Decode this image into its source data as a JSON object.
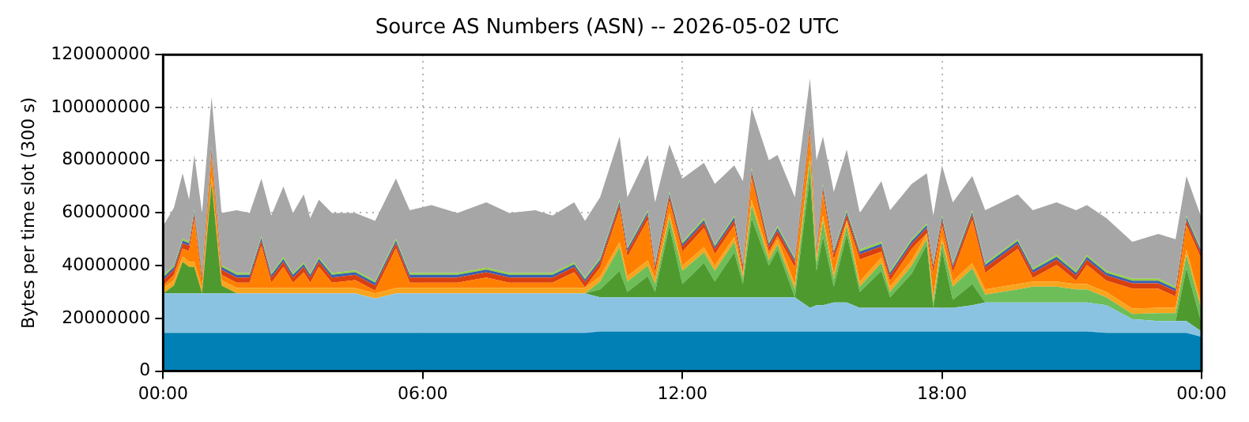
{
  "chart_data": {
    "type": "area",
    "stacked": true,
    "title": "Source AS Numbers (ASN) -- 2026-05-02 UTC",
    "ylabel": "Bytes per time slot (300 s)",
    "x": [
      0,
      0.25,
      0.45,
      0.6,
      0.72,
      0.9,
      1.12,
      1.35,
      1.7,
      2.0,
      2.27,
      2.5,
      2.78,
      3.0,
      3.25,
      3.4,
      3.6,
      3.9,
      4.44,
      4.9,
      5.38,
      5.7,
      6.2,
      6.8,
      7.47,
      8.0,
      8.6,
      9.0,
      9.5,
      9.75,
      10.1,
      10.55,
      10.73,
      11.2,
      11.37,
      11.7,
      12.0,
      12.5,
      12.75,
      13.2,
      13.4,
      13.6,
      14.0,
      14.2,
      14.6,
      14.95,
      15.1,
      15.25,
      15.5,
      15.8,
      16.1,
      16.6,
      16.8,
      17.3,
      17.65,
      17.8,
      18.0,
      18.25,
      18.7,
      19.0,
      19.75,
      20.1,
      20.65,
      21.1,
      21.35,
      21.8,
      22.4,
      23.0,
      23.4,
      23.65,
      24
    ],
    "xlim": [
      0,
      24
    ],
    "xticks": [
      {
        "value": 0,
        "label": "00:00"
      },
      {
        "value": 6,
        "label": "06:00"
      },
      {
        "value": 12,
        "label": "12:00"
      },
      {
        "value": 18,
        "label": "18:00"
      },
      {
        "value": 24,
        "label": "00:00"
      }
    ],
    "ylim": [
      0,
      120000000
    ],
    "yticks": [
      0,
      20000000,
      40000000,
      60000000,
      80000000,
      100000000,
      120000000
    ],
    "grid": true,
    "series": [
      {
        "color": "#0080b4",
        "values": [
          14500000.0,
          14500000.0,
          14500000.0,
          14500000.0,
          14500000.0,
          14500000.0,
          14500000.0,
          14500000.0,
          14500000.0,
          14500000.0,
          14500000.0,
          14500000.0,
          14500000.0,
          14500000.0,
          14500000.0,
          14500000.0,
          14500000.0,
          14500000.0,
          14500000.0,
          14500000.0,
          14500000.0,
          14500000.0,
          14500000.0,
          14500000.0,
          14500000.0,
          14500000.0,
          14500000.0,
          14500000.0,
          14500000.0,
          14500000.0,
          15000000.0,
          15000000.0,
          15000000.0,
          15000000.0,
          15000000.0,
          15000000.0,
          15000000.0,
          15000000.0,
          15000000.0,
          15000000.0,
          15000000.0,
          15000000.0,
          15000000.0,
          15000000.0,
          15000000.0,
          15000000.0,
          15000000.0,
          15000000.0,
          15000000.0,
          15000000.0,
          15000000.0,
          15000000.0,
          15000000.0,
          15000000.0,
          15000000.0,
          15000000.0,
          15000000.0,
          15000000.0,
          15000000.0,
          15000000.0,
          15000000.0,
          15000000.0,
          15000000.0,
          15000000.0,
          15000000.0,
          14500000.0,
          14500000.0,
          14500000.0,
          14500000.0,
          14500000.0,
          13000000.0
        ]
      },
      {
        "color": "#8ac3e2",
        "values": [
          15000000.0,
          15000000.0,
          15000000.0,
          15000000.0,
          15000000.0,
          15000000.0,
          15000000.0,
          15000000.0,
          15000000.0,
          15000000.0,
          15000000.0,
          15000000.0,
          15000000.0,
          15000000.0,
          15000000.0,
          15000000.0,
          15000000.0,
          15000000.0,
          15000000.0,
          13000000.0,
          15000000.0,
          15000000.0,
          15000000.0,
          15000000.0,
          15000000.0,
          15000000.0,
          15000000.0,
          15000000.0,
          15000000.0,
          15000000.0,
          13000000.0,
          13000000.0,
          13000000.0,
          13000000.0,
          13000000.0,
          13000000.0,
          13000000.0,
          13000000.0,
          13000000.0,
          13000000.0,
          13000000.0,
          13000000.0,
          13000000.0,
          13000000.0,
          13000000.0,
          9000000.0,
          10000000.0,
          10000000.0,
          11000000.0,
          11000000.0,
          9000000.0,
          9000000.0,
          9000000.0,
          9000000.0,
          9000000.0,
          9000000.0,
          9000000.0,
          9000000.0,
          10000000.0,
          11000000.0,
          11000000.0,
          11000000.0,
          11000000.0,
          11000000.0,
          11000000.0,
          10500000.0,
          5200000.0,
          4500000.0,
          4500000.0,
          4500000.0,
          2000000.0
        ]
      },
      {
        "color": "#4f9a2f",
        "values": [
          0,
          3000000.0,
          12000000.0,
          10000000.0,
          10000000.0,
          0,
          42000000.0,
          3000000.0,
          0,
          0,
          0,
          0,
          0,
          0,
          0,
          0,
          0,
          0,
          0,
          0,
          0,
          0,
          0,
          0,
          0,
          0,
          0,
          0,
          0,
          0,
          3000000.0,
          10000000.0,
          2000000.0,
          8000000.0,
          2000000.0,
          27000000.0,
          5000000.0,
          13000000.0,
          6000000.0,
          17000000.0,
          5000000.0,
          30000000.0,
          12000000.0,
          18000000.0,
          0,
          50000000.0,
          13000000.0,
          26000000.0,
          6000000.0,
          26000000.0,
          6000000.0,
          14000000.0,
          4000000.0,
          13000000.0,
          24000000.0,
          0,
          22000000.0,
          3000000.0,
          8000000.0,
          0,
          0,
          0,
          0,
          0,
          0,
          0,
          0,
          0,
          0,
          20000000.0,
          3000000.0
        ]
      },
      {
        "color": "#6dbd58",
        "values": [
          0,
          0,
          0,
          0,
          0,
          0,
          0,
          0,
          0,
          0,
          0,
          0,
          0,
          0,
          0,
          0,
          0,
          0,
          0,
          0,
          0,
          0,
          0,
          0,
          0,
          0,
          0,
          0,
          0,
          0,
          3000000.0,
          9000000.0,
          4000000.0,
          4000000.0,
          3000000.0,
          3000000.0,
          5000000.0,
          4000000.0,
          4000000.0,
          4000000.0,
          2000000.0,
          5000000.0,
          2000000.0,
          2000000.0,
          3000000.0,
          6000000.0,
          3000000.0,
          6000000.0,
          3000000.0,
          3000000.0,
          2000000.0,
          3000000.0,
          2000000.0,
          3000000.0,
          2000000.0,
          2000000.0,
          3000000.0,
          5000000.0,
          6000000.0,
          3000000.0,
          5000000.0,
          6000000.0,
          6000000.0,
          5000000.0,
          5000000.0,
          3000000.0,
          2000000.0,
          3000000.0,
          3000000.0,
          5000000.0,
          5000000.0
        ]
      },
      {
        "color": "#f7a51e",
        "values": [
          2000000.0,
          2000000.0,
          2000000.0,
          2000000.0,
          2000000.0,
          2000000.0,
          2000000.0,
          2000000.0,
          2000000.0,
          2000000.0,
          2000000.0,
          2000000.0,
          2000000.0,
          2000000.0,
          2000000.0,
          2000000.0,
          2000000.0,
          2000000.0,
          2000000.0,
          2000000.0,
          2000000.0,
          2000000.0,
          2000000.0,
          2000000.0,
          2000000.0,
          2000000.0,
          2000000.0,
          2000000.0,
          2000000.0,
          2000000.0,
          2000000.0,
          2000000.0,
          2000000.0,
          2000000.0,
          2000000.0,
          2000000.0,
          2000000.0,
          2000000.0,
          2000000.0,
          2000000.0,
          2000000.0,
          2000000.0,
          2000000.0,
          2000000.0,
          2000000.0,
          2000000.0,
          2000000.0,
          2000000.0,
          2000000.0,
          2000000.0,
          2000000.0,
          2000000.0,
          2000000.0,
          2000000.0,
          2000000.0,
          2000000.0,
          2000000.0,
          2000000.0,
          2000000.0,
          2000000.0,
          2000000.0,
          2000000.0,
          2000000.0,
          2000000.0,
          2000000.0,
          2000000.0,
          2000000.0,
          2000000.0,
          2000000.0,
          2000000.0,
          2000000.0
        ]
      },
      {
        "color": "#ff7f00",
        "values": [
          1000000.0,
          2000000.0,
          3000000.0,
          4000000.0,
          16000000.0,
          2000000.0,
          8000000.0,
          2000000.0,
          2000000.0,
          2000000.0,
          16000000.0,
          2000000.0,
          8000000.0,
          2000000.0,
          6000000.0,
          2000000.0,
          8000000.0,
          2000000.0,
          3000000.0,
          1000000.0,
          15000000.0,
          2000000.0,
          2000000.0,
          2000000.0,
          4000000.0,
          2000000.0,
          2000000.0,
          2000000.0,
          6000000.0,
          300000.0,
          3300000.0,
          12300000.0,
          7300000.0,
          15300000.0,
          2300000.0,
          4300000.0,
          5300000.0,
          7300000.0,
          4300000.0,
          4300000.0,
          300000.0,
          8300000.0,
          1300000.0,
          1300000.0,
          6300000.0,
          8300000.0,
          300000.0,
          8300000.0,
          5300000.0,
          300000.0,
          8300000.0,
          2300000.0,
          2300000.0,
          4300000.0,
          300000.0,
          9300000.0,
          4300000.0,
          3300000.0,
          16300000.0,
          6300000.0,
          13300000.0,
          1300000.0,
          6300000.0,
          1300000.0,
          7300000.0,
          4300000.0,
          7600000.0,
          7300000.0,
          4300000.0,
          9300000.0,
          17300000.0
        ]
      },
      {
        "color": "#d94010",
        "values": [
          2000000.0,
          2000000.0,
          2000000.0,
          2000000.0,
          2000000.0,
          2000000.0,
          2000000.0,
          2000000.0,
          2000000.0,
          2000000.0,
          2000000.0,
          2000000.0,
          2000000.0,
          2000000.0,
          2000000.0,
          2000000.0,
          2000000.0,
          2000000.0,
          2000000.0,
          2000000.0,
          2000000.0,
          2000000.0,
          2000000.0,
          2000000.0,
          2000000.0,
          2000000.0,
          2000000.0,
          2000000.0,
          2000000.0,
          2000000.0,
          2000000.0,
          2000000.0,
          2000000.0,
          2000000.0,
          2000000.0,
          2000000.0,
          2000000.0,
          2000000.0,
          2000000.0,
          2000000.0,
          2000000.0,
          2000000.0,
          2000000.0,
          2000000.0,
          2000000.0,
          2000000.0,
          2000000.0,
          2000000.0,
          2000000.0,
          2000000.0,
          2000000.0,
          2000000.0,
          2000000.0,
          2000000.0,
          2000000.0,
          2000000.0,
          2000000.0,
          2000000.0,
          2000000.0,
          2000000.0,
          2000000.0,
          2000000.0,
          2000000.0,
          2000000.0,
          2000000.0,
          2000000.0,
          2000000.0,
          2000000.0,
          2000000.0,
          2000000.0,
          2000000.0
        ]
      },
      {
        "color": "#3a5fb0",
        "values": [
          1000000.0,
          1000000.0,
          1000000.0,
          1000000.0,
          1000000.0,
          1000000.0,
          1000000.0,
          1000000.0,
          1000000.0,
          1000000.0,
          1000000.0,
          1000000.0,
          1000000.0,
          1000000.0,
          1000000.0,
          1000000.0,
          1000000.0,
          1000000.0,
          1000000.0,
          1000000.0,
          1000000.0,
          1000000.0,
          1000000.0,
          1000000.0,
          1000000.0,
          1000000.0,
          1000000.0,
          1000000.0,
          1000000.0,
          1000000.0,
          1000000.0,
          1000000.0,
          1000000.0,
          1000000.0,
          1000000.0,
          1000000.0,
          1000000.0,
          1000000.0,
          1000000.0,
          1000000.0,
          1000000.0,
          1000000.0,
          1000000.0,
          1000000.0,
          1000000.0,
          1000000.0,
          1000000.0,
          1000000.0,
          1000000.0,
          1000000.0,
          1000000.0,
          1000000.0,
          1000000.0,
          1000000.0,
          1000000.0,
          1000000.0,
          1000000.0,
          1000000.0,
          1000000.0,
          1000000.0,
          1000000.0,
          1000000.0,
          1000000.0,
          1000000.0,
          1000000.0,
          1000000.0,
          1000000.0,
          1000000.0,
          1000000.0,
          1000000.0,
          1000000.0
        ]
      },
      {
        "color": "#8fd140",
        "values": [
          700000.0,
          700000.0,
          700000.0,
          700000.0,
          700000.0,
          700000.0,
          700000.0,
          700000.0,
          700000.0,
          700000.0,
          700000.0,
          700000.0,
          700000.0,
          700000.0,
          700000.0,
          700000.0,
          700000.0,
          700000.0,
          700000.0,
          700000.0,
          700000.0,
          700000.0,
          700000.0,
          700000.0,
          700000.0,
          700000.0,
          700000.0,
          700000.0,
          700000.0,
          700000.0,
          700000.0,
          700000.0,
          700000.0,
          700000.0,
          700000.0,
          700000.0,
          700000.0,
          700000.0,
          700000.0,
          700000.0,
          700000.0,
          700000.0,
          700000.0,
          700000.0,
          700000.0,
          700000.0,
          700000.0,
          700000.0,
          700000.0,
          700000.0,
          700000.0,
          700000.0,
          700000.0,
          700000.0,
          700000.0,
          700000.0,
          700000.0,
          700000.0,
          700000.0,
          700000.0,
          700000.0,
          700000.0,
          700000.0,
          700000.0,
          700000.0,
          700000.0,
          700000.0,
          700000.0,
          700000.0,
          700000.0,
          700000.0
        ]
      },
      {
        "color": "#a6a6a6",
        "values": [
          18800000.0,
          21800000.0,
          24800000.0,
          15800000.0,
          20800000.0,
          22800000.0,
          18800000.0,
          19800000.0,
          23800000.0,
          22800000.0,
          21800000.0,
          21800000.0,
          26800000.0,
          22800000.0,
          25800000.0,
          20800000.0,
          21800000.0,
          22800000.0,
          21800000.0,
          22800000.0,
          22800000.0,
          23800000.0,
          25800000.0,
          22800000.0,
          24800000.0,
          22800000.0,
          23800000.0,
          21800000.0,
          22800000.0,
          21500000.0,
          23000000.0,
          24000000.0,
          19000000.0,
          21000000.0,
          23000000.0,
          18000000.0,
          24000000.0,
          21000000.0,
          23000000.0,
          19000000.0,
          31000000.0,
          23000000.0,
          31000000.0,
          27000000.0,
          23000000.0,
          17000000.0,
          33000000.0,
          18000000.0,
          22000000.0,
          23000000.0,
          14000000.0,
          23000000.0,
          23000000.0,
          21000000.0,
          19000000.0,
          18000000.0,
          19000000.0,
          23000000.0,
          13000000.0,
          20000000.0,
          17000000.0,
          22000000.0,
          20000000.0,
          23000000.0,
          19000000.0,
          20000000.0,
          14000000.0,
          17000000.0,
          18000000.0,
          15000000.0,
          12000000.0
        ]
      }
    ]
  }
}
